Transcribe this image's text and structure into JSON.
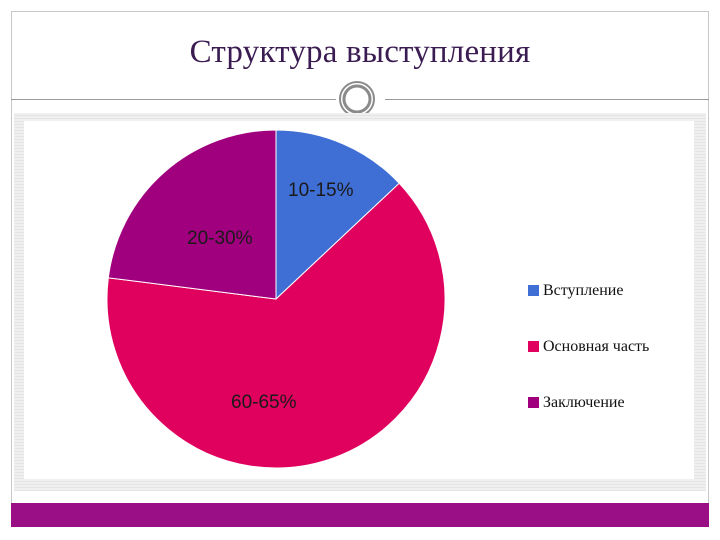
{
  "slide": {
    "title": "Структура выступления"
  },
  "colors": {
    "title": "#3b1c52",
    "footer_band": "#9a0f86"
  },
  "chart_data": {
    "type": "pie",
    "categories": [
      "Вступление",
      "Основная часть",
      "Заключение"
    ],
    "values": [
      13,
      64,
      23
    ],
    "data_labels": [
      "10-15%",
      "60-65%",
      "20-30%"
    ],
    "colors": [
      "#3f6fd4",
      "#e0005e",
      "#a0007e"
    ],
    "legend_placement": "right",
    "title": ""
  }
}
